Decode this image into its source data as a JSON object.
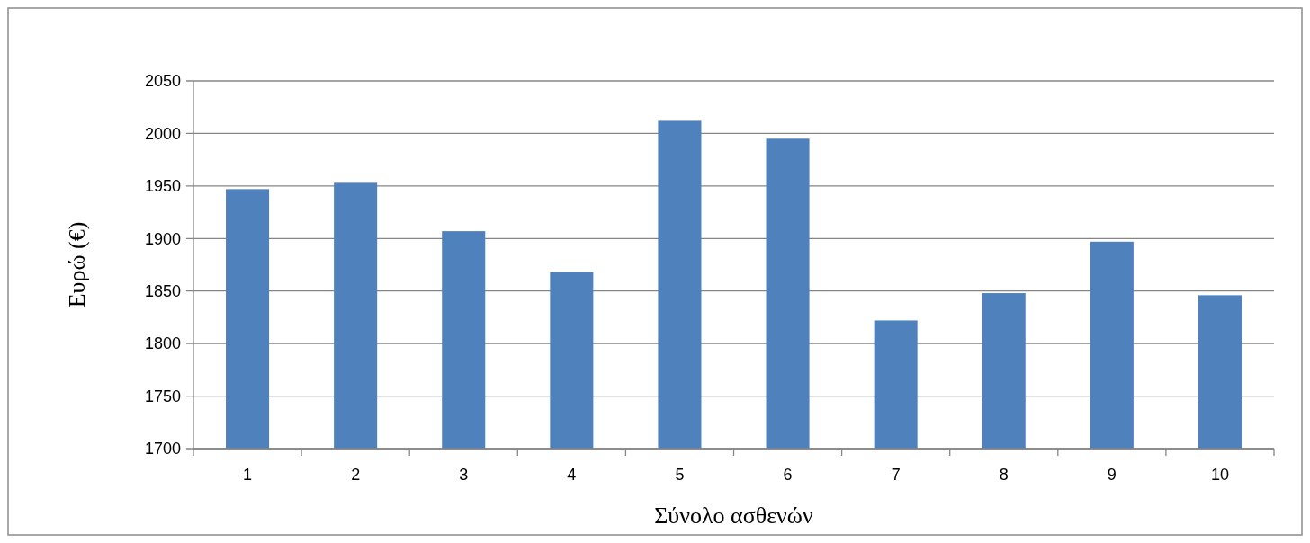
{
  "chart_data": {
    "type": "bar",
    "xlabel": "Σύνολο ασθενών",
    "ylabel": "Ευρώ (€)",
    "categories": [
      "1",
      "2",
      "3",
      "4",
      "5",
      "6",
      "7",
      "8",
      "9",
      "10"
    ],
    "values": [
      1947,
      1953,
      1907,
      1868,
      2012,
      1995,
      1822,
      1848,
      1897,
      1846
    ],
    "color": "#4f81bd",
    "ylim": [
      1700,
      2050
    ],
    "yticks": [
      1700,
      1750,
      1800,
      1850,
      1900,
      1950,
      2000,
      2050
    ],
    "grid": "y"
  }
}
